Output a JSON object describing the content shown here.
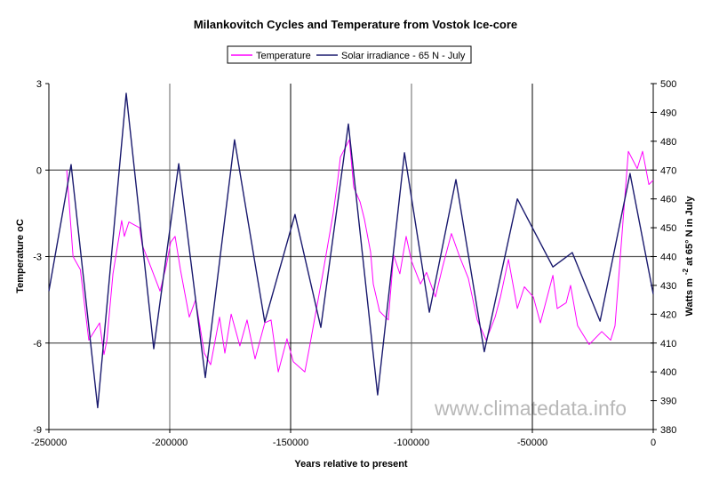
{
  "chart_data": {
    "type": "line",
    "title": "Milankovitch Cycles and Temperature from Vostok Ice-core",
    "xlabel": "Years relative to present",
    "ylabel": "Temperature oC",
    "y2label_main": "Watts m",
    "y2label_sup": "-2",
    "y2label_rest": " at 65° N in July",
    "xlim": [
      -250000,
      0
    ],
    "ylim": [
      -9,
      3
    ],
    "y2lim": [
      380,
      500
    ],
    "xticks": [
      -250000,
      -200000,
      -150000,
      -100000,
      -50000,
      0
    ],
    "yticks": [
      -9,
      -6,
      -3,
      0,
      3
    ],
    "y2ticks": [
      380,
      390,
      400,
      410,
      420,
      430,
      440,
      450,
      460,
      470,
      480,
      490,
      500
    ],
    "grid": true,
    "legend_position": "top",
    "watermark": "www.climatedata.info",
    "series": [
      {
        "name": "Temperature",
        "axis": "left",
        "color": "#ff00ff",
        "points": [
          [
            -242600,
            0
          ],
          [
            -240000,
            -3.0
          ],
          [
            -237000,
            -3.45
          ],
          [
            -233500,
            -5.9
          ],
          [
            -229000,
            -5.3
          ],
          [
            -227200,
            -6.4
          ],
          [
            -226000,
            -5.9
          ],
          [
            -223500,
            -3.6
          ],
          [
            -219900,
            -1.75
          ],
          [
            -218800,
            -2.3
          ],
          [
            -216900,
            -1.8
          ],
          [
            -212500,
            -2.0
          ],
          [
            -211400,
            -2.6
          ],
          [
            -208800,
            -3.15
          ],
          [
            -204000,
            -4.2
          ],
          [
            -201500,
            -3.35
          ],
          [
            -199600,
            -2.5
          ],
          [
            -197800,
            -2.3
          ],
          [
            -195600,
            -3.45
          ],
          [
            -191900,
            -5.1
          ],
          [
            -189300,
            -4.5
          ],
          [
            -185700,
            -6.35
          ],
          [
            -183100,
            -6.75
          ],
          [
            -179400,
            -5.1
          ],
          [
            -177200,
            -6.35
          ],
          [
            -174600,
            -5.0
          ],
          [
            -171000,
            -6.1
          ],
          [
            -168000,
            -5.2
          ],
          [
            -164700,
            -6.55
          ],
          [
            -160700,
            -5.3
          ],
          [
            -158100,
            -5.2
          ],
          [
            -155100,
            -7.0
          ],
          [
            -151500,
            -5.85
          ],
          [
            -148900,
            -6.65
          ],
          [
            -144100,
            -7.0
          ],
          [
            -142300,
            -6.2
          ],
          [
            -136800,
            -3.65
          ],
          [
            -132400,
            -1.5
          ],
          [
            -130500,
            -0.35
          ],
          [
            -129400,
            0.45
          ],
          [
            -125700,
            1.05
          ],
          [
            -123900,
            -0.6
          ],
          [
            -121300,
            -1.1
          ],
          [
            -119500,
            -1.7
          ],
          [
            -116900,
            -2.85
          ],
          [
            -115800,
            -3.95
          ],
          [
            -113200,
            -4.9
          ],
          [
            -109600,
            -5.2
          ],
          [
            -107400,
            -2.95
          ],
          [
            -104800,
            -3.6
          ],
          [
            -102200,
            -2.3
          ],
          [
            -100000,
            -3.15
          ],
          [
            -96300,
            -3.95
          ],
          [
            -93800,
            -3.55
          ],
          [
            -90100,
            -4.4
          ],
          [
            -87100,
            -3.35
          ],
          [
            -83500,
            -2.2
          ],
          [
            -80100,
            -3.0
          ],
          [
            -76500,
            -3.75
          ],
          [
            -72800,
            -5.2
          ],
          [
            -69100,
            -5.9
          ],
          [
            -65400,
            -5.1
          ],
          [
            -63200,
            -4.4
          ],
          [
            -59900,
            -3.1
          ],
          [
            -56200,
            -4.8
          ],
          [
            -53300,
            -4.05
          ],
          [
            -49600,
            -4.4
          ],
          [
            -46700,
            -5.3
          ],
          [
            -41500,
            -3.65
          ],
          [
            -39700,
            -4.8
          ],
          [
            -36000,
            -4.6
          ],
          [
            -34200,
            -4.0
          ],
          [
            -31300,
            -5.4
          ],
          [
            -26500,
            -6.05
          ],
          [
            -21300,
            -5.6
          ],
          [
            -17600,
            -5.9
          ],
          [
            -15800,
            -5.4
          ],
          [
            -12800,
            -2.1
          ],
          [
            -10300,
            0.65
          ],
          [
            -6600,
            0.05
          ],
          [
            -4400,
            0.65
          ],
          [
            -1800,
            -0.5
          ],
          [
            0,
            -0.35
          ]
        ]
      },
      {
        "name": "Solar irradiance - 65 N - July",
        "axis": "right",
        "color": "#1a1a6e",
        "points": [
          [
            -250000,
            428
          ],
          [
            -240800,
            471.9
          ],
          [
            -229800,
            387.6
          ],
          [
            -218000,
            496.6
          ],
          [
            -206600,
            408
          ],
          [
            -196300,
            472.2
          ],
          [
            -185300,
            398
          ],
          [
            -173200,
            480.5
          ],
          [
            -160700,
            417.3
          ],
          [
            -148200,
            454.6
          ],
          [
            -137500,
            415.4
          ],
          [
            -126100,
            486
          ],
          [
            -114000,
            392
          ],
          [
            -102900,
            476
          ],
          [
            -92600,
            420.7
          ],
          [
            -81600,
            466.7
          ],
          [
            -69900,
            407
          ],
          [
            -56200,
            460
          ],
          [
            -41500,
            436.4
          ],
          [
            -33500,
            441.4
          ],
          [
            -22000,
            417.6
          ],
          [
            -9600,
            468.8
          ],
          [
            0,
            427
          ]
        ]
      }
    ]
  }
}
